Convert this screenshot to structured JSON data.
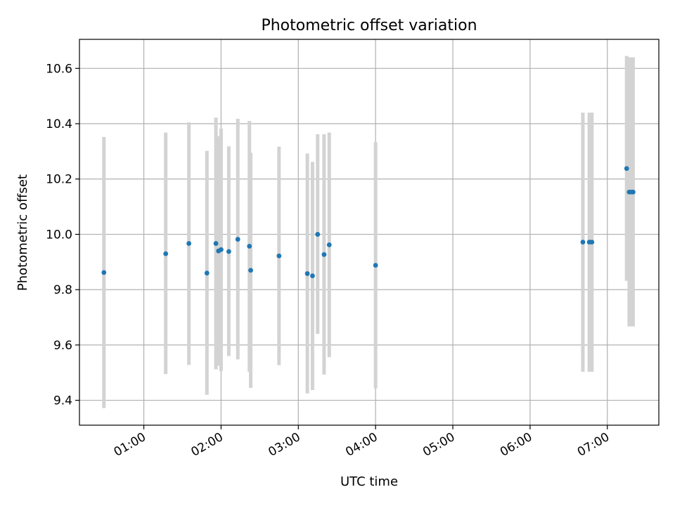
{
  "chart_data": {
    "type": "scatter",
    "title": "Photometric offset variation",
    "xlabel": "UTC time",
    "ylabel": "Photometric offset",
    "x_unit": "hours UTC",
    "xlim": [
      "00:10",
      "07:40"
    ],
    "ylim": [
      9.31,
      10.705
    ],
    "x_ticks": [
      "01:00",
      "02:00",
      "03:00",
      "04:00",
      "05:00",
      "06:00",
      "07:00"
    ],
    "y_ticks": [
      "9.4",
      "9.6",
      "9.8",
      "10.0",
      "10.2",
      "10.4",
      "10.6"
    ],
    "grid": true,
    "legend": "none",
    "colors": {
      "marker": "#1f77b4",
      "errorbar": "#d3d3d3",
      "grid": "#b0b0b0"
    },
    "points": [
      {
        "time": "00:29",
        "y": 9.862,
        "lo": 9.372,
        "hi": 10.352
      },
      {
        "time": "01:17",
        "y": 9.93,
        "lo": 9.495,
        "hi": 10.368
      },
      {
        "time": "01:35",
        "y": 9.967,
        "lo": 9.528,
        "hi": 10.405
      },
      {
        "time": "01:49",
        "y": 9.86,
        "lo": 9.42,
        "hi": 10.302
      },
      {
        "time": "01:56",
        "y": 9.967,
        "lo": 9.512,
        "hi": 10.422
      },
      {
        "time": "01:58",
        "y": 9.94,
        "lo": 9.525,
        "hi": 10.355
      },
      {
        "time": "02:00",
        "y": 9.945,
        "lo": 9.505,
        "hi": 10.382
      },
      {
        "time": "02:06",
        "y": 9.938,
        "lo": 9.56,
        "hi": 10.318
      },
      {
        "time": "02:13",
        "y": 9.982,
        "lo": 9.548,
        "hi": 10.418
      },
      {
        "time": "02:22",
        "y": 9.957,
        "lo": 9.503,
        "hi": 10.41
      },
      {
        "time": "02:23",
        "y": 9.87,
        "lo": 9.445,
        "hi": 10.295
      },
      {
        "time": "02:45",
        "y": 9.922,
        "lo": 9.527,
        "hi": 10.317
      },
      {
        "time": "03:07",
        "y": 9.858,
        "lo": 9.425,
        "hi": 10.292
      },
      {
        "time": "03:11",
        "y": 9.85,
        "lo": 9.437,
        "hi": 10.262
      },
      {
        "time": "03:15",
        "y": 10.0,
        "lo": 9.64,
        "hi": 10.362
      },
      {
        "time": "03:20",
        "y": 9.927,
        "lo": 9.493,
        "hi": 10.362
      },
      {
        "time": "03:24",
        "y": 9.962,
        "lo": 9.556,
        "hi": 10.368
      },
      {
        "time": "04:00",
        "y": 9.888,
        "lo": 9.443,
        "hi": 10.333
      },
      {
        "time": "06:41",
        "y": 9.972,
        "lo": 9.503,
        "hi": 10.44
      },
      {
        "time": "06:46",
        "y": 9.972,
        "lo": 9.503,
        "hi": 10.44
      },
      {
        "time": "06:48",
        "y": 9.972,
        "lo": 9.503,
        "hi": 10.44
      },
      {
        "time": "07:15",
        "y": 10.238,
        "lo": 9.832,
        "hi": 10.645
      },
      {
        "time": "07:17",
        "y": 10.153,
        "lo": 9.667,
        "hi": 10.64
      },
      {
        "time": "07:19",
        "y": 10.153,
        "lo": 9.667,
        "hi": 10.64
      },
      {
        "time": "07:20",
        "y": 10.153,
        "lo": 9.667,
        "hi": 10.64
      }
    ]
  }
}
